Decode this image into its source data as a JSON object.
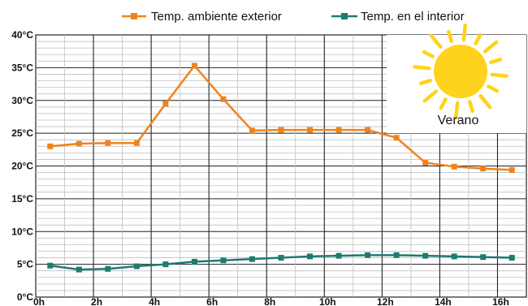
{
  "chart_data": {
    "type": "line",
    "x": [
      0.5,
      1.5,
      2.5,
      3.5,
      4.5,
      5.5,
      6.5,
      7.5,
      8.5,
      9.5,
      10.5,
      11.5,
      12.5,
      13.5,
      14.5,
      15.5,
      16.5
    ],
    "series": [
      {
        "name": "Temp.  ambiente exterior",
        "color": "#f0821e",
        "values": [
          23,
          23.4,
          23.5,
          23.5,
          29.5,
          35.3,
          30.2,
          25.4,
          25.5,
          25.5,
          25.5,
          25.5,
          24.3,
          20.5,
          19.9,
          19.6,
          19.4
        ]
      },
      {
        "name": "Temp. en el interior",
        "color": "#1e7b70",
        "values": [
          4.8,
          4.2,
          4.3,
          4.7,
          5.0,
          5.4,
          5.6,
          5.8,
          6.0,
          6.2,
          6.3,
          6.4,
          6.4,
          6.3,
          6.2,
          6.1,
          6.0
        ]
      }
    ],
    "x_ticks": [
      "0h",
      "2h",
      "4h",
      "6h",
      "8h",
      "10h",
      "12h",
      "14h",
      "16h"
    ],
    "y_ticks": [
      "0°C",
      "5°C",
      "10°C",
      "15°C",
      "20°C",
      "25°C",
      "30°C",
      "35°C",
      "40°C"
    ],
    "xlim": [
      0,
      17
    ],
    "ylim": [
      0,
      40
    ],
    "grid": true,
    "legend": "top",
    "annotation": "Verano"
  },
  "sun_icon": "sun-icon"
}
